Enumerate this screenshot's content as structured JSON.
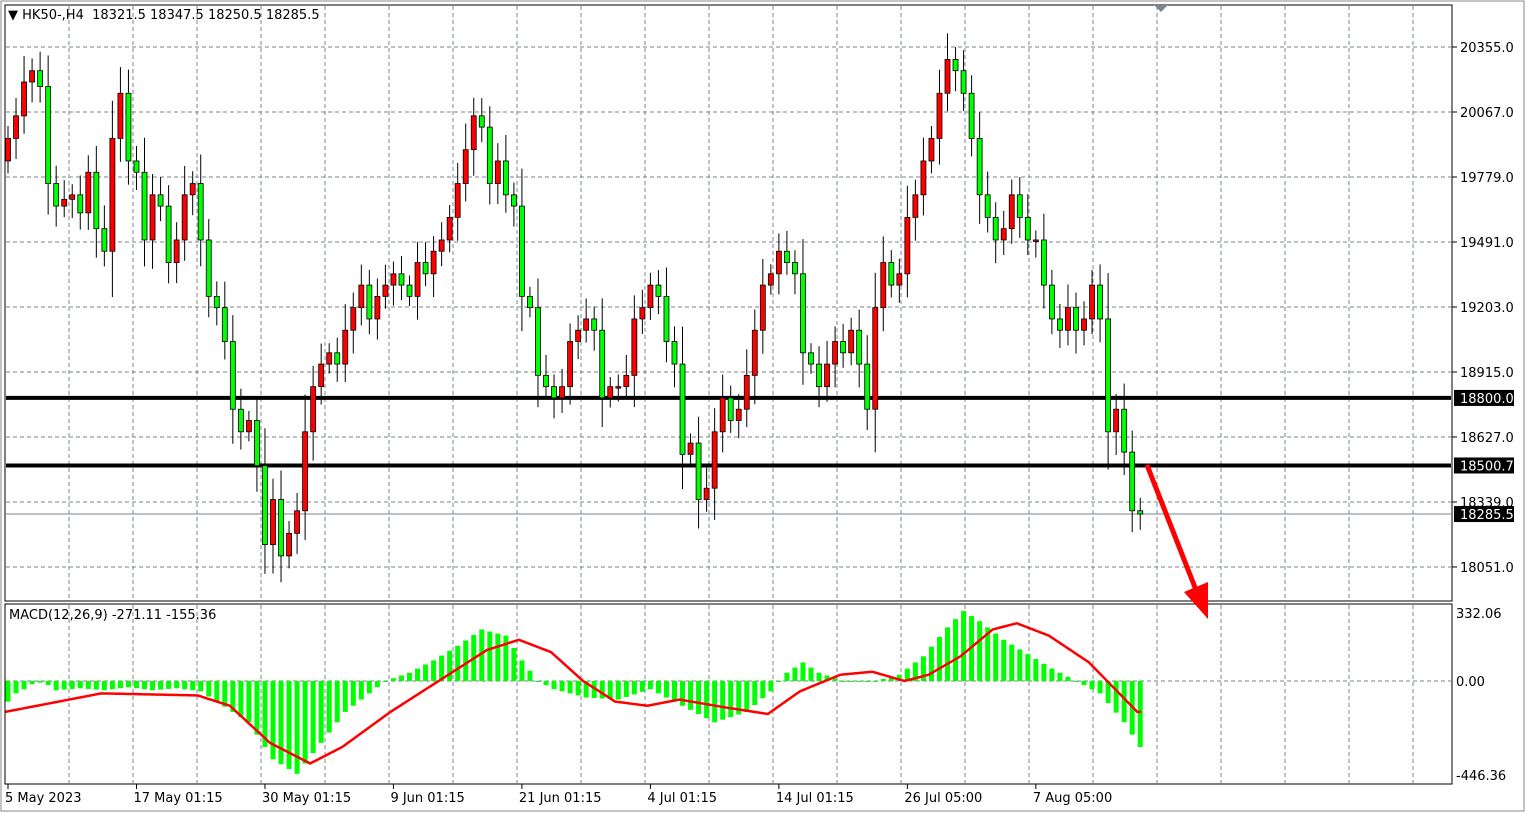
{
  "header": {
    "symbol": "HK50-,H4",
    "open": "18321.5",
    "high": "18347.5",
    "low": "18250.5",
    "close": "18285.5",
    "dropdown_icon": "triangle-down-icon"
  },
  "colors": {
    "bull": "#ff0000",
    "bear": "#00ff00",
    "grid": "#7b8591",
    "level_line": "#000000",
    "arrow": "#ff0000",
    "signal": "#ff0000",
    "histogram": "#00ff00"
  },
  "chart_data": [
    {
      "type": "candlestick",
      "title": "HK50-,H4",
      "ylim": [
        17920,
        20470
      ],
      "y_ticks": [
        "20355.0",
        "20067.0",
        "19779.0",
        "19491.0",
        "19203.0",
        "18915.0",
        "18627.0",
        "18339.0",
        "18051.0"
      ],
      "y_tick_values": [
        20355.0,
        20067.0,
        19779.0,
        19491.0,
        19203.0,
        18915.0,
        18627.0,
        18339.0,
        18051.0
      ],
      "x_ticks": [
        {
          "index": 0,
          "label": "5 May 2023"
        },
        {
          "index": 16,
          "label": "17 May 01:15"
        },
        {
          "index": 32,
          "label": "30 May 01:15"
        },
        {
          "index": 48,
          "label": "9 Jun 01:15"
        },
        {
          "index": 64,
          "label": "21 Jun 01:15"
        },
        {
          "index": 80,
          "label": "4 Jul 01:15"
        },
        {
          "index": 96,
          "label": "14 Jul 01:15"
        },
        {
          "index": 112,
          "label": "26 Jul 05:00"
        },
        {
          "index": 128,
          "label": "7 Aug 05:00"
        }
      ],
      "first_open": 19850,
      "closes": [
        19950,
        20050,
        20200,
        20250,
        20180,
        19750,
        19650,
        19680,
        19700,
        19620,
        19800,
        19550,
        19450,
        19950,
        20150,
        19850,
        19800,
        19500,
        19700,
        19650,
        19400,
        19500,
        19700,
        19750,
        19500,
        19250,
        19200,
        19050,
        18750,
        18650,
        18700,
        18500,
        18150,
        18350,
        18100,
        18200,
        18300,
        18650,
        18850,
        18950,
        19000,
        18950,
        19100,
        19200,
        19300,
        19150,
        19250,
        19300,
        19350,
        19300,
        19250,
        19400,
        19350,
        19450,
        19500,
        19600,
        19750,
        19900,
        20050,
        20000,
        19750,
        19850,
        19700,
        19650,
        19250,
        19200,
        18900,
        18850,
        18800,
        18850,
        19050,
        19100,
        19150,
        19100,
        18800,
        18850,
        18850,
        18900,
        19150,
        19200,
        19300,
        19250,
        19050,
        18950,
        18550,
        18600,
        18350,
        18400,
        18650,
        18800,
        18700,
        18750,
        18900,
        19100,
        19300,
        19350,
        19450,
        19400,
        19350,
        19000,
        18950,
        18850,
        18950,
        19050,
        19000,
        19100,
        18950,
        18750,
        19200,
        19400,
        19300,
        19350,
        19600,
        19700,
        19850,
        19950,
        20150,
        20300,
        20250,
        20150,
        19950,
        19700,
        19600,
        19500,
        19550,
        19700,
        19600,
        19500,
        19500,
        19300,
        19150,
        19100,
        19200,
        19100,
        19150,
        19300,
        19150,
        18650,
        18750,
        18560,
        18300,
        18285.5
      ],
      "levels": [
        {
          "price": 18800.0,
          "label": "18800.0"
        },
        {
          "price": 18500.7,
          "label": "18500.7"
        }
      ],
      "current_price": {
        "price": 18285.5,
        "label": "18285.5"
      },
      "annotation": "red-arrow-down"
    },
    {
      "type": "bar+line",
      "title": "MACD(12,26,9) -271.11 -155.36",
      "ylim": [
        -446.36,
        332.06
      ],
      "y_ticks": [
        "332.06",
        "0.00",
        "-446.36"
      ],
      "y_tick_values": [
        332.06,
        0,
        -446.36
      ],
      "histogram_points": [
        [
          0,
          -100
        ],
        [
          1,
          -60
        ],
        [
          2,
          -40
        ],
        [
          3,
          -15
        ],
        [
          4,
          -8
        ],
        [
          5,
          -20
        ],
        [
          6,
          -45
        ],
        [
          9,
          -35
        ],
        [
          12,
          -45
        ],
        [
          15,
          -30
        ],
        [
          18,
          -45
        ],
        [
          21,
          -35
        ],
        [
          24,
          -50
        ],
        [
          26,
          -100
        ],
        [
          30,
          -200
        ],
        [
          33,
          -380
        ],
        [
          36,
          -450
        ],
        [
          38,
          -350
        ],
        [
          40,
          -250
        ],
        [
          42,
          -150
        ],
        [
          45,
          -60
        ],
        [
          47,
          0
        ],
        [
          50,
          40
        ],
        [
          53,
          100
        ],
        [
          56,
          170
        ],
        [
          59,
          250
        ],
        [
          62,
          220
        ],
        [
          64,
          100
        ],
        [
          66,
          0
        ],
        [
          68,
          -40
        ],
        [
          72,
          -80
        ],
        [
          76,
          -90
        ],
        [
          80,
          -40
        ],
        [
          84,
          -120
        ],
        [
          88,
          -200
        ],
        [
          92,
          -150
        ],
        [
          95,
          -50
        ],
        [
          97,
          40
        ],
        [
          99,
          90
        ],
        [
          101,
          40
        ],
        [
          104,
          0
        ],
        [
          108,
          0
        ],
        [
          111,
          30
        ],
        [
          114,
          120
        ],
        [
          117,
          260
        ],
        [
          119,
          340
        ],
        [
          121,
          290
        ],
        [
          124,
          200
        ],
        [
          127,
          130
        ],
        [
          130,
          60
        ],
        [
          133,
          0
        ],
        [
          136,
          -60
        ],
        [
          139,
          -200
        ],
        [
          141,
          -320
        ]
      ],
      "signal_points": [
        [
          0,
          -150
        ],
        [
          12,
          -60
        ],
        [
          24,
          -70
        ],
        [
          28,
          -120
        ],
        [
          33,
          -300
        ],
        [
          38,
          -400
        ],
        [
          42,
          -320
        ],
        [
          48,
          -150
        ],
        [
          54,
          0
        ],
        [
          60,
          150
        ],
        [
          64,
          200
        ],
        [
          68,
          140
        ],
        [
          72,
          0
        ],
        [
          76,
          -100
        ],
        [
          80,
          -120
        ],
        [
          84,
          -90
        ],
        [
          90,
          -130
        ],
        [
          95,
          -160
        ],
        [
          99,
          -50
        ],
        [
          104,
          30
        ],
        [
          108,
          45
        ],
        [
          112,
          0
        ],
        [
          115,
          30
        ],
        [
          119,
          120
        ],
        [
          123,
          250
        ],
        [
          126,
          280
        ],
        [
          130,
          220
        ],
        [
          135,
          90
        ],
        [
          141,
          -150
        ]
      ]
    }
  ]
}
